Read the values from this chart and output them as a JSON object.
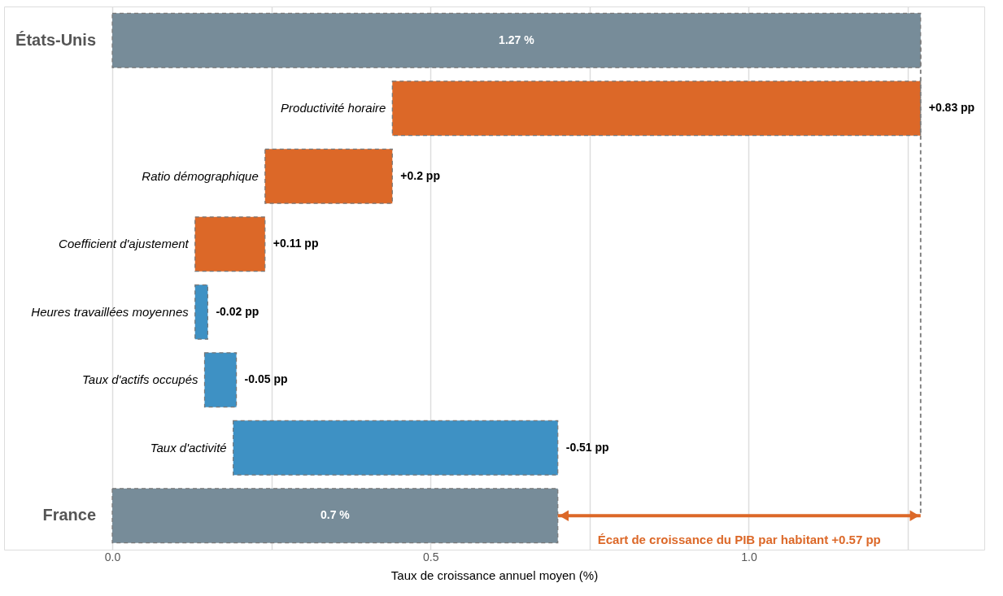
{
  "chart_data": {
    "type": "bar",
    "orientation": "horizontal",
    "xlabel": "Taux de croissance annuel moyen (%)",
    "categories": [
      "États-Unis",
      "Productivité horaire",
      "Ratio démographique",
      "Coefficient d'ajustement",
      "Heures travaillées moyennes",
      "Taux d'actifs occupés",
      "Taux d'activité",
      "France"
    ],
    "values": [
      1.27,
      0.83,
      0.2,
      0.11,
      -0.02,
      -0.05,
      -0.51,
      0.7
    ],
    "base": [
      0,
      0.44,
      0.24,
      0.13,
      0.15,
      0.195,
      0.7,
      0
    ],
    "colors": [
      "#778c99",
      "#dc6828",
      "#dc6828",
      "#dc6828",
      "#3e91c4",
      "#3e91c4",
      "#3e91c4",
      "#778c99"
    ],
    "value_labels": [
      "1.27 %",
      "+0.83 pp",
      "+0.2 pp",
      "+0.11 pp",
      "-0.02 pp",
      "-0.05 pp",
      "-0.51 pp",
      "0.7 %"
    ],
    "xlim": [
      -0.17,
      1.37
    ],
    "xticks": [
      {
        "value": 0,
        "label": "0.0"
      },
      {
        "value": 0.25,
        "label": null
      },
      {
        "value": 0.5,
        "label": "0.5"
      },
      {
        "value": 0.75,
        "label": null
      },
      {
        "value": 1,
        "label": "1.0"
      },
      {
        "value": 1.25,
        "label": null
      }
    ],
    "grid": "x",
    "tick_labels": "x",
    "ref_lines": [
      {
        "axis": "x",
        "value": 1.27,
        "color": "#777777",
        "line_style": "dashed"
      }
    ],
    "annotations": [
      "Écart de croissance du PIB par habitant  +0.57 pp"
    ]
  }
}
